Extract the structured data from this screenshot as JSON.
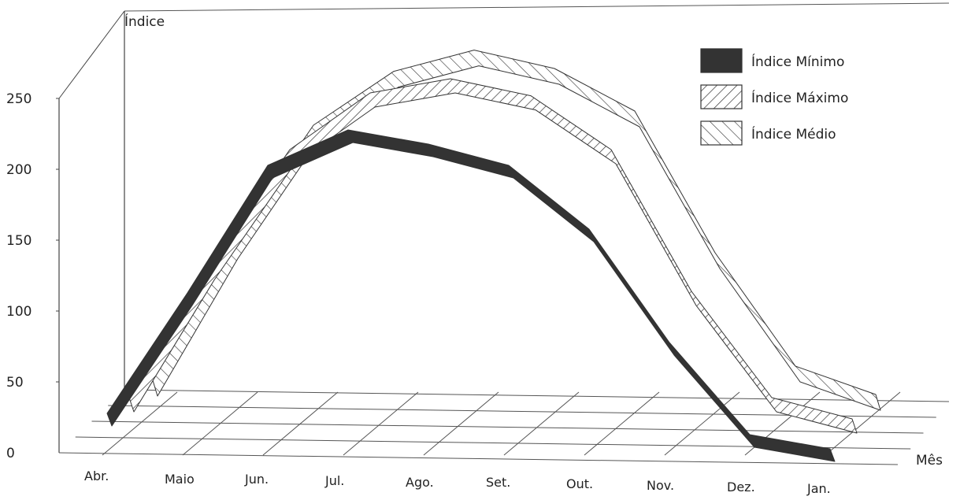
{
  "chart_data": {
    "type": "area",
    "ylabel": "Índice",
    "xlabel": "Mês",
    "categories": [
      "Abr.",
      "Maio",
      "Jun.",
      "Jul.",
      "Ago.",
      "Set.",
      "Out.",
      "Nov.",
      "Dez.",
      "Jan."
    ],
    "yticks": [
      0,
      50,
      100,
      150,
      200,
      250
    ],
    "ylim": [
      0,
      270
    ],
    "grid": true,
    "legend_position": "top-right",
    "series": [
      {
        "name": "Índice Mínimo",
        "values": [
          25,
          110,
          200,
          225,
          215,
          200,
          155,
          75,
          10,
          0
        ],
        "color": "#333333",
        "fill": "solid"
      },
      {
        "name": "Índice Máximo",
        "values": [
          25,
          118,
          200,
          240,
          250,
          238,
          200,
          100,
          25,
          10
        ],
        "color": "#333333",
        "fill": "hatch-forward"
      },
      {
        "name": "Índice Médio",
        "values": [
          25,
          122,
          205,
          243,
          258,
          245,
          215,
          115,
          35,
          15
        ],
        "color": "#333333",
        "fill": "hatch-back"
      }
    ]
  }
}
